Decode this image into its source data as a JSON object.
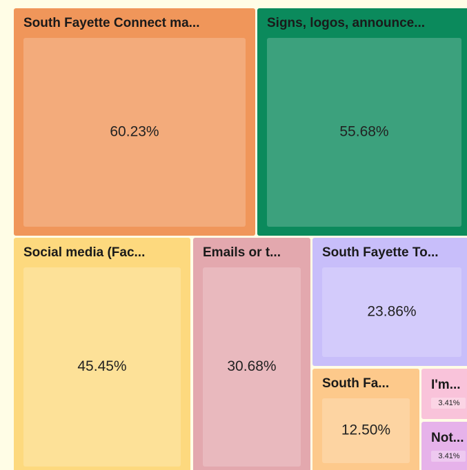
{
  "chart_data": {
    "type": "treemap",
    "categories": [
      "South Fayette Connect ma...",
      "Signs, logos, announce...",
      "Social media (Fac...",
      "Emails or t...",
      "South Fayette To...",
      "South Fa...",
      "I'm...",
      "Not..."
    ],
    "values": [
      60.23,
      55.68,
      45.45,
      30.68,
      23.86,
      12.5,
      3.41,
      3.41
    ],
    "value_labels": [
      "60.23%",
      "55.68%",
      "45.45%",
      "30.68%",
      "23.86%",
      "12.50%",
      "3.41%",
      "3.41%"
    ],
    "colors": [
      "#f0965a",
      "#0b8a5c",
      "#fdd97e",
      "#e3a8ae",
      "#c8befa",
      "#fdc98b",
      "#f9c3da",
      "#e6b2ea"
    ]
  }
}
